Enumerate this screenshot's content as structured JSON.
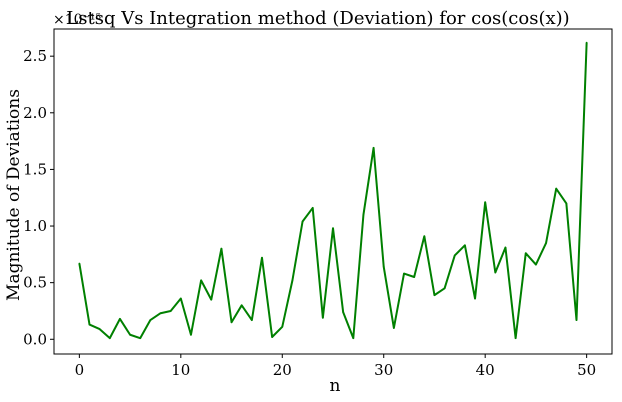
{
  "chart_data": {
    "type": "line",
    "title": "Lstsq Vs Integration method (Deviation) for cos(cos(x))",
    "xlabel": "n",
    "ylabel": "Magnitude of Deviations",
    "y_scale_label": "×10⁻¹⁵",
    "xlim": [
      -2.5,
      52.5
    ],
    "ylim": [
      -0.13,
      2.74
    ],
    "x_ticks": [
      0,
      10,
      20,
      30,
      40,
      50
    ],
    "y_ticks": [
      0.0,
      0.5,
      1.0,
      1.5,
      2.0,
      2.5
    ],
    "x_tick_labels": [
      "0",
      "10",
      "20",
      "30",
      "40",
      "50"
    ],
    "y_tick_labels": [
      "0.0",
      "0.5",
      "1.0",
      "1.5",
      "2.0",
      "2.5"
    ],
    "grid": false,
    "series": [
      {
        "color": "#008000",
        "x": [
          0,
          1,
          2,
          3,
          4,
          5,
          6,
          7,
          8,
          9,
          10,
          11,
          12,
          13,
          14,
          15,
          16,
          17,
          18,
          19,
          20,
          21,
          22,
          23,
          24,
          25,
          26,
          27,
          28,
          29,
          30,
          31,
          32,
          33,
          34,
          35,
          36,
          37,
          38,
          39,
          40,
          41,
          42,
          43,
          44,
          45,
          46,
          47,
          48,
          49,
          50
        ],
        "values": [
          0.67,
          0.13,
          0.09,
          0.01,
          0.18,
          0.04,
          0.01,
          0.17,
          0.23,
          0.25,
          0.36,
          0.04,
          0.52,
          0.35,
          0.8,
          0.15,
          0.3,
          0.17,
          0.72,
          0.02,
          0.11,
          0.52,
          1.04,
          1.16,
          0.19,
          0.98,
          0.24,
          0.01,
          1.1,
          1.69,
          0.64,
          0.1,
          0.58,
          0.55,
          0.91,
          0.39,
          0.45,
          0.74,
          0.83,
          0.36,
          1.21,
          0.59,
          0.81,
          0.01,
          0.76,
          0.66,
          0.85,
          1.33,
          1.2,
          0.17,
          2.62
        ]
      }
    ]
  }
}
